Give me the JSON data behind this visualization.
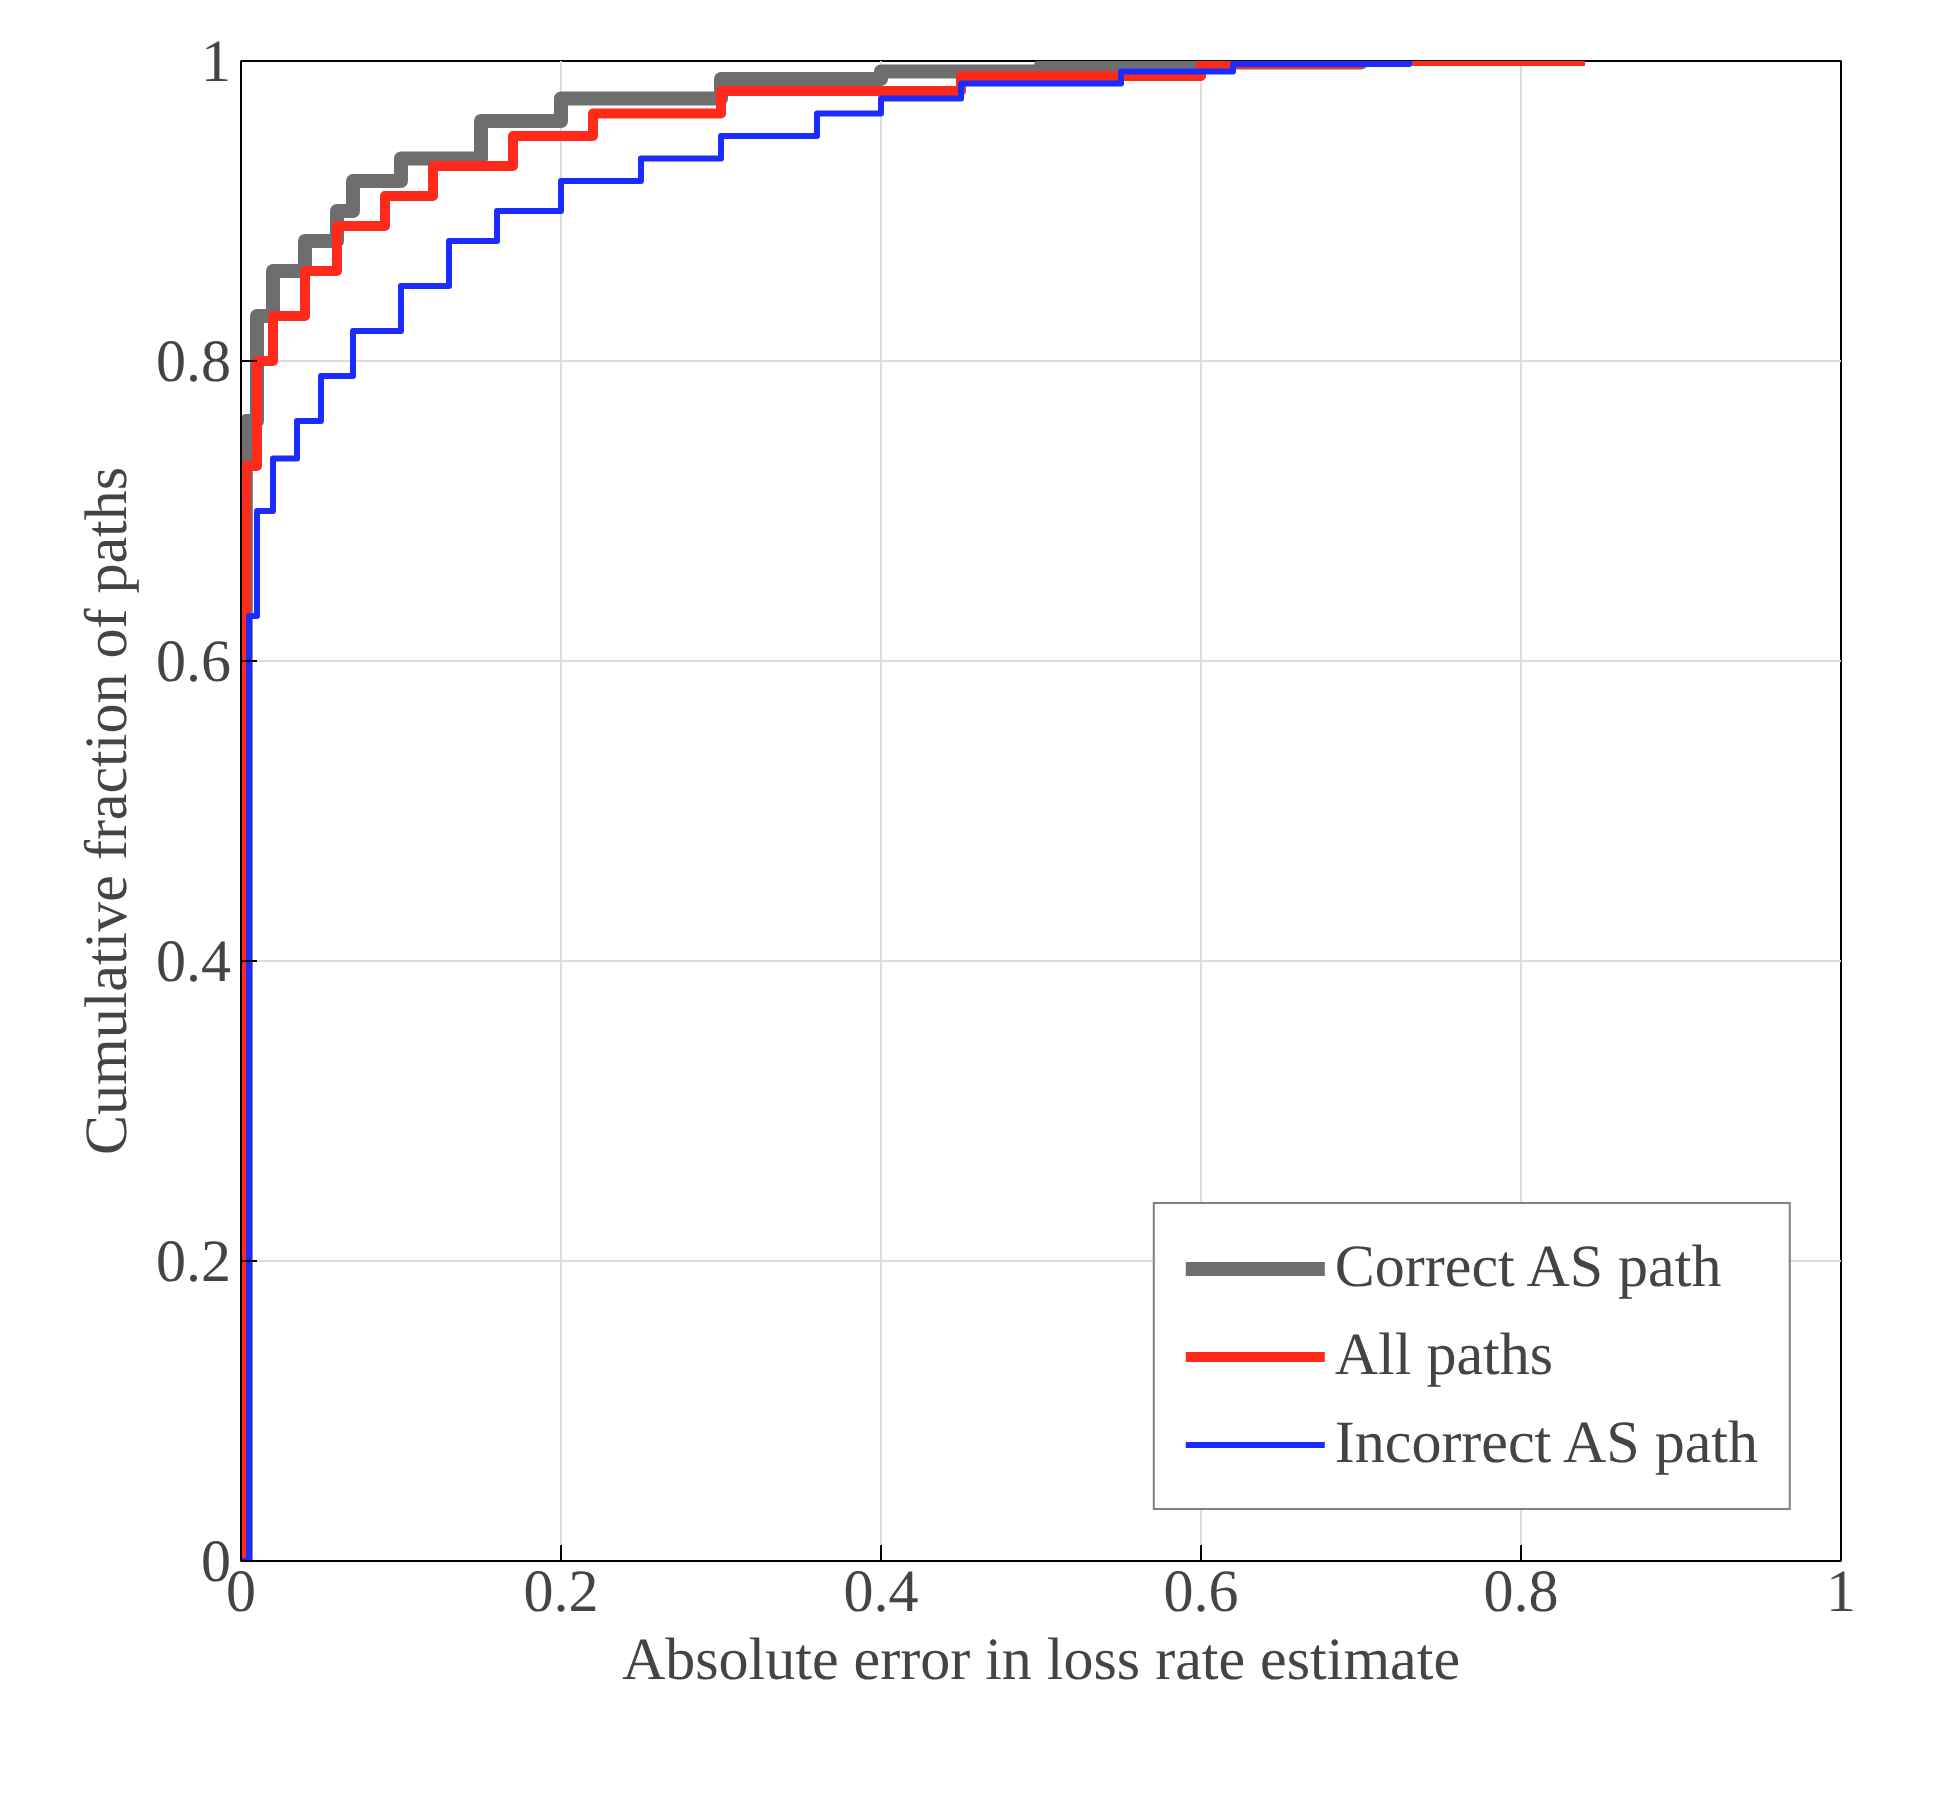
{
  "chart_data": {
    "type": "step",
    "xlabel": "Absolute error in loss rate estimate",
    "ylabel": "Cumulative fraction of paths",
    "xlim": [
      0,
      1
    ],
    "ylim": [
      0,
      1
    ],
    "xticks": [
      0,
      0.2,
      0.4,
      0.6,
      0.8,
      1
    ],
    "yticks": [
      0,
      0.2,
      0.4,
      0.6,
      0.8,
      1
    ],
    "grid": true,
    "legend": "bottom right",
    "series": [
      {
        "name": "Correct AS path",
        "color": "#6e6e6e",
        "x": [
          0,
          0.003,
          0.01,
          0.02,
          0.04,
          0.06,
          0.07,
          0.1,
          0.15,
          0.2,
          0.3,
          0.4,
          0.5,
          0.6,
          0.7
        ],
        "values": [
          0,
          0.76,
          0.83,
          0.86,
          0.88,
          0.9,
          0.92,
          0.935,
          0.96,
          0.975,
          0.988,
          0.993,
          0.997,
          0.999,
          1
        ]
      },
      {
        "name": "All paths",
        "color": "#ff2a1a",
        "x": [
          0,
          0.001,
          0.003,
          0.01,
          0.02,
          0.04,
          0.06,
          0.09,
          0.12,
          0.17,
          0.22,
          0.3,
          0.45,
          0.6,
          0.7,
          0.84
        ],
        "values": [
          0,
          0.63,
          0.73,
          0.8,
          0.83,
          0.86,
          0.89,
          0.91,
          0.93,
          0.95,
          0.965,
          0.98,
          0.99,
          0.998,
          1,
          1
        ]
      },
      {
        "name": "Incorrect AS path",
        "color": "#1a2cff",
        "x": [
          0,
          0.005,
          0.01,
          0.02,
          0.035,
          0.05,
          0.07,
          0.1,
          0.13,
          0.16,
          0.2,
          0.25,
          0.3,
          0.36,
          0.4,
          0.45,
          0.55,
          0.62,
          0.73
        ],
        "values": [
          0,
          0.63,
          0.7,
          0.735,
          0.76,
          0.79,
          0.82,
          0.85,
          0.88,
          0.9,
          0.92,
          0.935,
          0.95,
          0.965,
          0.975,
          0.985,
          0.993,
          0.998,
          1
        ]
      }
    ]
  }
}
